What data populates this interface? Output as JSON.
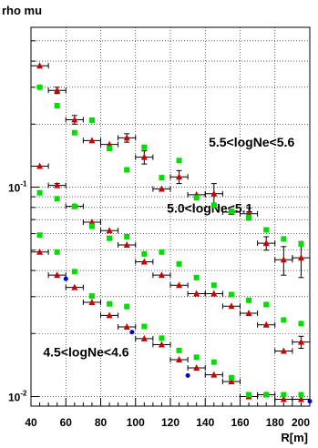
{
  "chart_data": {
    "type": "scatter",
    "title": "rho mu",
    "xlabel": "R[m]",
    "ylabel": "",
    "xlim": [
      40,
      200
    ],
    "ylim": [
      0.009,
      0.58
    ],
    "yscale": "log",
    "grid": true,
    "x_ticks": [
      40,
      60,
      80,
      100,
      120,
      140,
      160,
      180,
      200
    ],
    "x_tick_labels": [
      "40",
      "60",
      "80",
      "100",
      "120",
      "140",
      "160",
      "180",
      "200"
    ],
    "y_tick_labels": [
      {
        "value": 0.1,
        "label": "10",
        "exp": "-1"
      },
      {
        "value": 0.01,
        "label": "10",
        "exp": "-2"
      }
    ],
    "annotations": [
      {
        "text": "5.5<logNe<5.6",
        "x": 142,
        "y": 0.156
      },
      {
        "text": "5.0<logNe<5.1",
        "x": 118,
        "y": 0.0756
      },
      {
        "text": "4.5<logNe<4.6",
        "x": 47,
        "y": 0.0155
      }
    ],
    "series": [
      {
        "marker": "triangle",
        "color": "#cc0000",
        "x": [
          45,
          55,
          65,
          75,
          85,
          95,
          105,
          115,
          125,
          135,
          145,
          155,
          165,
          175,
          185,
          195
        ],
        "y": [
          0.38,
          0.29,
          0.21,
          0.167,
          0.16,
          0.172,
          0.139,
          0.098,
          0.112,
          0.092,
          0.093,
          0.076,
          0.0746,
          0.054,
          0.045,
          0.046
        ],
        "yerr": [
          0,
          0.01,
          0.01,
          0,
          0,
          0.008,
          0.01,
          0,
          0.008,
          0,
          0.011,
          0,
          0.005,
          0.004,
          0.007,
          0.009
        ]
      },
      {
        "marker": "square",
        "color": "#00dd00",
        "x": [
          45,
          55,
          65,
          75,
          85,
          95,
          105,
          115,
          125,
          135,
          145,
          155,
          165,
          175,
          185,
          195
        ],
        "y": [
          0.3,
          0.245,
          0.182,
          0.209,
          0.153,
          0.121,
          0.155,
          0.111,
          0.134,
          0.089,
          0.082,
          0.0767,
          0.0716,
          0.0625,
          0.0566,
          0.0535
        ]
      },
      {
        "marker": "triangle",
        "color": "#cc0000",
        "x": [
          45,
          55,
          65,
          75,
          85,
          95,
          105,
          115,
          125,
          135,
          145,
          155,
          165,
          175,
          185,
          195
        ],
        "y": [
          0.126,
          0.102,
          0.081,
          0.068,
          0.062,
          0.053,
          0.044,
          0.038,
          0.034,
          0.031,
          0.031,
          0.027,
          0.025,
          0.022,
          0.0165,
          0.0182
        ],
        "yerr": [
          0,
          0.002,
          0,
          0,
          0,
          0,
          0,
          0,
          0,
          0,
          0,
          0,
          0,
          0,
          0,
          0.0012
        ]
      },
      {
        "marker": "square",
        "color": "#00dd00",
        "x": [
          45,
          55,
          65,
          75,
          85,
          95,
          105,
          115,
          125,
          135,
          145,
          155,
          165,
          175,
          185,
          195
        ],
        "y": [
          0.094,
          0.088,
          0.081,
          0.065,
          0.057,
          0.058,
          0.048,
          0.049,
          0.043,
          0.037,
          0.034,
          0.0307,
          0.0288,
          0.0275,
          0.0232,
          0.0223
        ]
      },
      {
        "marker": "triangle",
        "color": "#cc0000",
        "x": [
          45,
          55,
          65,
          75,
          85,
          95,
          105,
          115,
          125,
          135,
          145,
          155,
          165,
          175,
          185,
          195
        ],
        "y": [
          0.049,
          0.038,
          0.0332,
          0.0282,
          0.0244,
          0.0215,
          0.0189,
          0.0177,
          0.015,
          0.0137,
          0.0127,
          0.0118,
          0.01,
          0.0102,
          0.0097,
          0.0097
        ]
      },
      {
        "marker": "square",
        "color": "#00dd00",
        "x": [
          45,
          55,
          65,
          75,
          85,
          95,
          105,
          115,
          125,
          135,
          145,
          155,
          165,
          175,
          185,
          195
        ],
        "y": [
          0.059,
          0.049,
          0.0395,
          0.0302,
          0.0277,
          0.0269,
          0.0216,
          0.019,
          0.0166,
          0.0154,
          0.0146,
          0.0123,
          0.0102,
          0.0102,
          0.0102,
          0.0102
        ]
      },
      {
        "marker": "circle",
        "color": "#0000cc",
        "x": [
          60,
          98,
          130,
          200
        ],
        "y": [
          0.0365,
          0.0203,
          0.0126,
          0.0095
        ]
      }
    ]
  }
}
